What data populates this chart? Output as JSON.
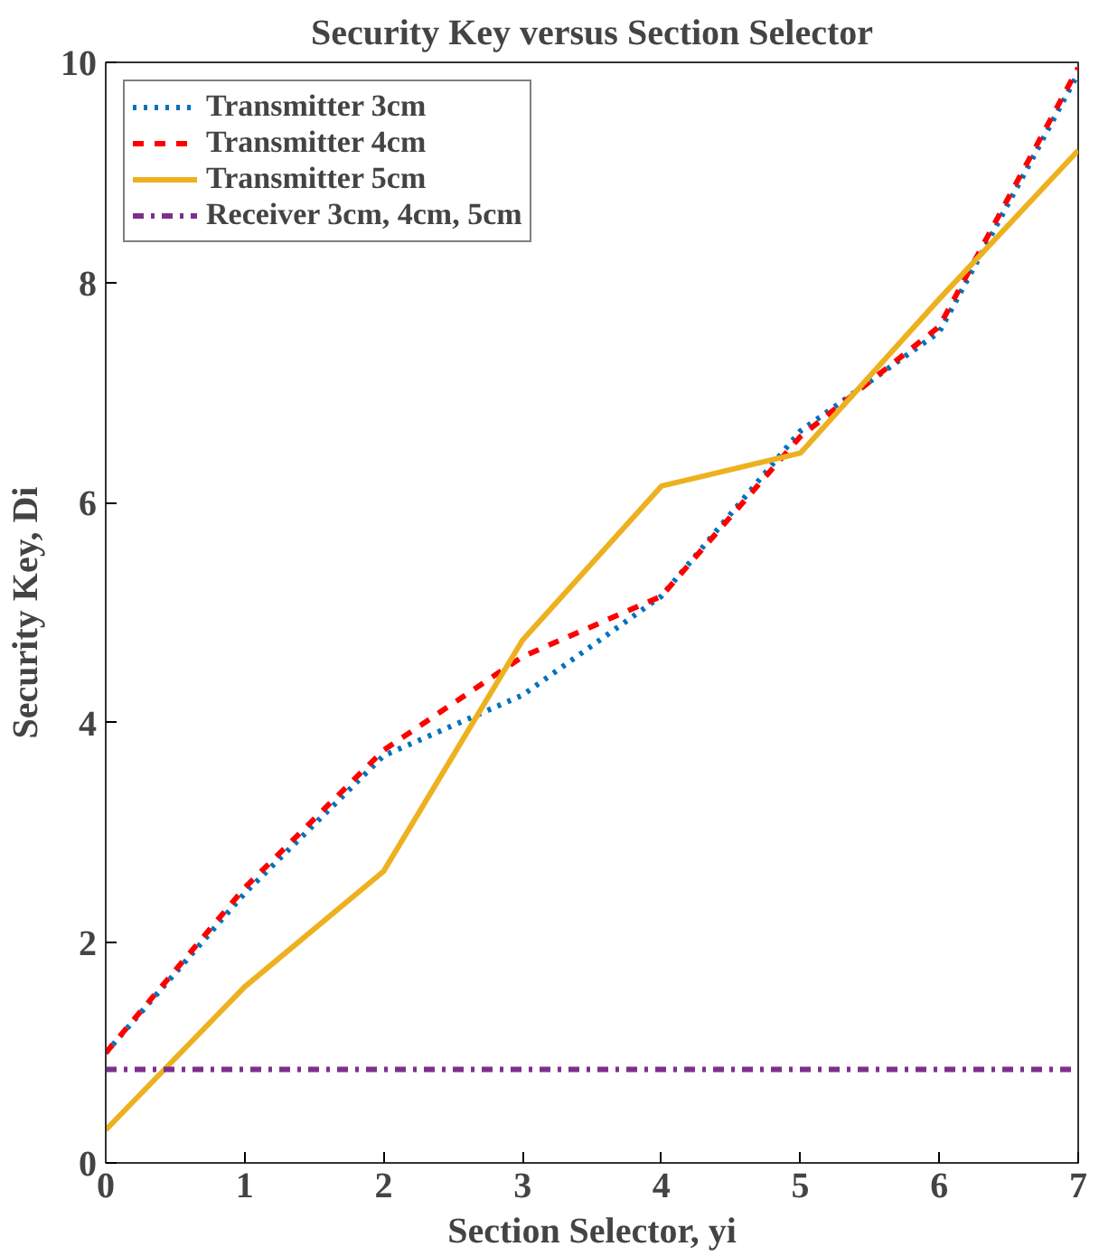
{
  "chart_data": {
    "type": "line",
    "title": "Security Key versus Section Selector",
    "xlabel": "Section Selector, yi",
    "ylabel": "Security Key, Di",
    "x": [
      0,
      1,
      2,
      3,
      4,
      5,
      6,
      7
    ],
    "xlim": [
      0,
      7
    ],
    "ylim": [
      0,
      10
    ],
    "xticks": [
      0,
      1,
      2,
      3,
      4,
      5,
      6,
      7
    ],
    "yticks": [
      0,
      2,
      4,
      6,
      8,
      10
    ],
    "grid": false,
    "legend": "top left",
    "marker": "none",
    "series": [
      {
        "name": "Transmitter 3cm",
        "color": "#0072bd",
        "line_style": "dotted",
        "values": [
          1.0,
          2.45,
          3.7,
          4.25,
          5.15,
          6.65,
          7.55,
          9.9
        ]
      },
      {
        "name": "Transmitter 4cm",
        "color": "#ff0000",
        "line_style": "dashed",
        "values": [
          1.0,
          2.5,
          3.75,
          4.6,
          5.15,
          6.6,
          7.6,
          9.95
        ]
      },
      {
        "name": "Transmitter 5cm",
        "color": "#edb120",
        "line_style": "solid",
        "values": [
          0.3,
          1.6,
          2.65,
          4.75,
          6.15,
          6.45,
          7.85,
          9.2
        ]
      },
      {
        "name": "Receiver 3cm, 4cm, 5cm",
        "color": "#7e2f8e",
        "line_style": "dashdot",
        "values": [
          0.85,
          0.85,
          0.85,
          0.85,
          0.85,
          0.85,
          0.85,
          0.85
        ]
      }
    ]
  }
}
